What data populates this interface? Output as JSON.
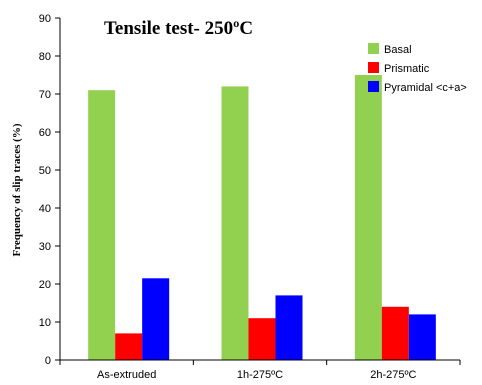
{
  "chart_data": {
    "type": "bar",
    "title": "Tensile test- 250ºC",
    "xlabel": "",
    "ylabel": "Frequency of slip traces (%)",
    "ylim": [
      0,
      90
    ],
    "yticks": [
      0,
      10,
      20,
      30,
      40,
      50,
      60,
      70,
      80,
      90
    ],
    "categories": [
      "As-extruded",
      "1h-275ºC",
      "2h-275ºC"
    ],
    "series": [
      {
        "name": "Basal",
        "color": "#92D050",
        "values": [
          71,
          72,
          75
        ]
      },
      {
        "name": "Prismatic",
        "color": "#FF0000",
        "values": [
          7,
          11,
          14
        ]
      },
      {
        "name": "Pyramidal <c+a>",
        "color": "#0000FF",
        "values": [
          21.5,
          17,
          12
        ]
      }
    ],
    "legend_position": "top-right",
    "grid": false
  }
}
